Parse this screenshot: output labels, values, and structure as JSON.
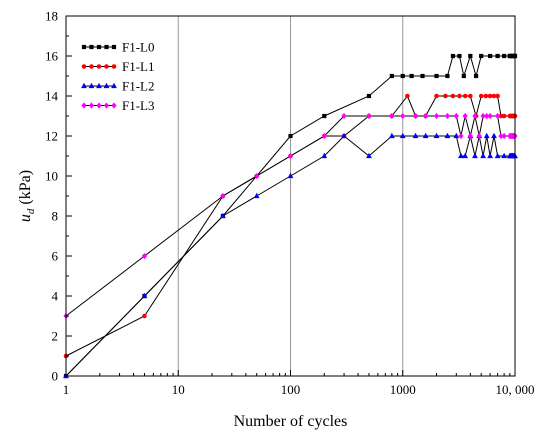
{
  "chart_data": {
    "type": "line",
    "x_scale": "log",
    "xlabel": "Number of cycles",
    "ylabel_main": "u",
    "ylabel_sub": "d",
    "ylabel_unit": " (kPa)",
    "xlim": [
      1,
      10000
    ],
    "ylim": [
      0,
      18
    ],
    "x_ticks": [
      1,
      10,
      100,
      1000,
      10000
    ],
    "x_tick_labels": [
      "1",
      "10",
      "100",
      "1000",
      "10, 000"
    ],
    "y_ticks": [
      0,
      2,
      4,
      6,
      8,
      10,
      12,
      14,
      16,
      18
    ],
    "y_tick_labels": [
      "0",
      "2",
      "4",
      "6",
      "8",
      "10",
      "12",
      "14",
      "16",
      "18"
    ],
    "vertical_grid": true,
    "horizontal_grid": false,
    "legend_position": "top-left",
    "series": [
      {
        "name": "F1-L0",
        "color": "#000000",
        "marker": "square",
        "points": [
          [
            1,
            0
          ],
          [
            5,
            4
          ],
          [
            25,
            8
          ],
          [
            100,
            12
          ],
          [
            200,
            13
          ],
          [
            500,
            14
          ],
          [
            800,
            15
          ],
          [
            1000,
            15
          ],
          [
            1200,
            15
          ],
          [
            1500,
            15
          ],
          [
            2000,
            15
          ],
          [
            2500,
            15
          ],
          [
            2800,
            16
          ],
          [
            3200,
            16
          ],
          [
            3500,
            15
          ],
          [
            4000,
            16
          ],
          [
            4500,
            15
          ],
          [
            5000,
            16
          ],
          [
            6000,
            16
          ],
          [
            7000,
            16
          ],
          [
            8000,
            16
          ],
          [
            9000,
            16
          ],
          [
            10000,
            16
          ]
        ]
      },
      {
        "name": "F1-L1",
        "color": "#ff0000",
        "marker": "circle",
        "points": [
          [
            1,
            1
          ],
          [
            5,
            3
          ],
          [
            25,
            9
          ],
          [
            50,
            10
          ],
          [
            100,
            11
          ],
          [
            200,
            12
          ],
          [
            300,
            12
          ],
          [
            500,
            13
          ],
          [
            800,
            13
          ],
          [
            1100,
            14
          ],
          [
            1300,
            13
          ],
          [
            1600,
            13
          ],
          [
            2000,
            14
          ],
          [
            2400,
            14
          ],
          [
            2800,
            14
          ],
          [
            3200,
            14
          ],
          [
            3600,
            14
          ],
          [
            4000,
            14
          ],
          [
            4500,
            13
          ],
          [
            5000,
            14
          ],
          [
            5500,
            14
          ],
          [
            6000,
            14
          ],
          [
            6500,
            14
          ],
          [
            7000,
            14
          ],
          [
            7500,
            13
          ],
          [
            8000,
            13
          ],
          [
            9000,
            13
          ],
          [
            10000,
            13
          ]
        ]
      },
      {
        "name": "F1-L2",
        "color": "#0000ff",
        "marker": "triangle",
        "points": [
          [
            1,
            0
          ],
          [
            5,
            4
          ],
          [
            25,
            8
          ],
          [
            50,
            9
          ],
          [
            100,
            10
          ],
          [
            200,
            11
          ],
          [
            300,
            12
          ],
          [
            500,
            11
          ],
          [
            800,
            12
          ],
          [
            1000,
            12
          ],
          [
            1300,
            12
          ],
          [
            1600,
            12
          ],
          [
            2000,
            12
          ],
          [
            2500,
            12
          ],
          [
            3000,
            12
          ],
          [
            3300,
            11
          ],
          [
            3600,
            11
          ],
          [
            4000,
            12
          ],
          [
            4400,
            11
          ],
          [
            4800,
            12
          ],
          [
            5200,
            11
          ],
          [
            5600,
            12
          ],
          [
            6000,
            11
          ],
          [
            6500,
            12
          ],
          [
            7000,
            11
          ],
          [
            8000,
            11
          ],
          [
            9000,
            11
          ],
          [
            10000,
            11
          ]
        ]
      },
      {
        "name": "F1-L3",
        "color": "#ff00ff",
        "marker": "diamond",
        "points": [
          [
            1,
            3
          ],
          [
            5,
            6
          ],
          [
            25,
            9
          ],
          [
            50,
            10
          ],
          [
            100,
            11
          ],
          [
            200,
            12
          ],
          [
            300,
            13
          ],
          [
            500,
            13
          ],
          [
            800,
            13
          ],
          [
            1000,
            13
          ],
          [
            1300,
            13
          ],
          [
            1600,
            13
          ],
          [
            2000,
            13
          ],
          [
            2500,
            13
          ],
          [
            3000,
            13
          ],
          [
            3300,
            12
          ],
          [
            3600,
            13
          ],
          [
            4000,
            12
          ],
          [
            4400,
            13
          ],
          [
            4800,
            12
          ],
          [
            5200,
            13
          ],
          [
            5600,
            13
          ],
          [
            6000,
            13
          ],
          [
            7000,
            13
          ],
          [
            7500,
            12
          ],
          [
            8000,
            12
          ],
          [
            9000,
            12
          ],
          [
            10000,
            12
          ]
        ]
      }
    ]
  }
}
